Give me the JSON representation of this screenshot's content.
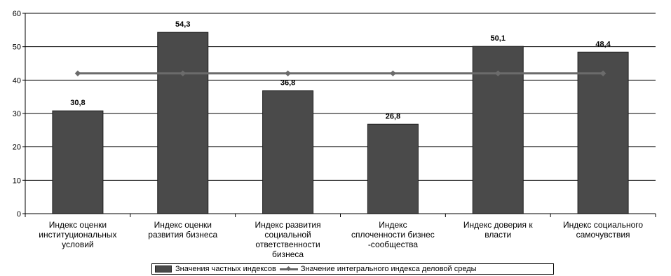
{
  "chart_data": {
    "type": "bar",
    "categories": [
      "Индекс оценки институциональных условий",
      "Индекс оценки развития бизнеса",
      "Индекс развития социальной ответственности бизнеса",
      "Индекс сплоченности бизнес -сообщества",
      "Индекс доверия к власти",
      "Индекс социального самочувствия"
    ],
    "category_lines": [
      [
        "Индекс оценки",
        "институциональных",
        "условий"
      ],
      [
        "Индекс оценки",
        "развития бизнеса"
      ],
      [
        "Индекс развития",
        "социальной",
        "ответственности",
        "бизнеса"
      ],
      [
        "Индекс",
        "сплоченности бизнес",
        "-сообщества"
      ],
      [
        "Индекс доверия к",
        "власти"
      ],
      [
        "Индекс социального",
        "самочувствия"
      ]
    ],
    "series": [
      {
        "name": "Значения частных индексов",
        "type": "bar",
        "values": [
          30.8,
          54.3,
          36.8,
          26.8,
          50.1,
          48.4
        ],
        "labels": [
          "30,8",
          "54,3",
          "36,8",
          "26,8",
          "50,1",
          "48,4"
        ]
      },
      {
        "name": "Значение интегрального индекса деловой среды",
        "type": "line",
        "values": [
          42,
          42,
          42,
          42,
          42,
          42
        ]
      }
    ],
    "yticks": [
      "0",
      "10",
      "20",
      "30",
      "40",
      "50",
      "60"
    ],
    "ylim": [
      0,
      60
    ],
    "title": "",
    "xlabel": "",
    "ylabel": "",
    "legend_position": "bottom",
    "colors": {
      "bar": "#4a4a4a",
      "line": "#6b6b6b"
    }
  }
}
